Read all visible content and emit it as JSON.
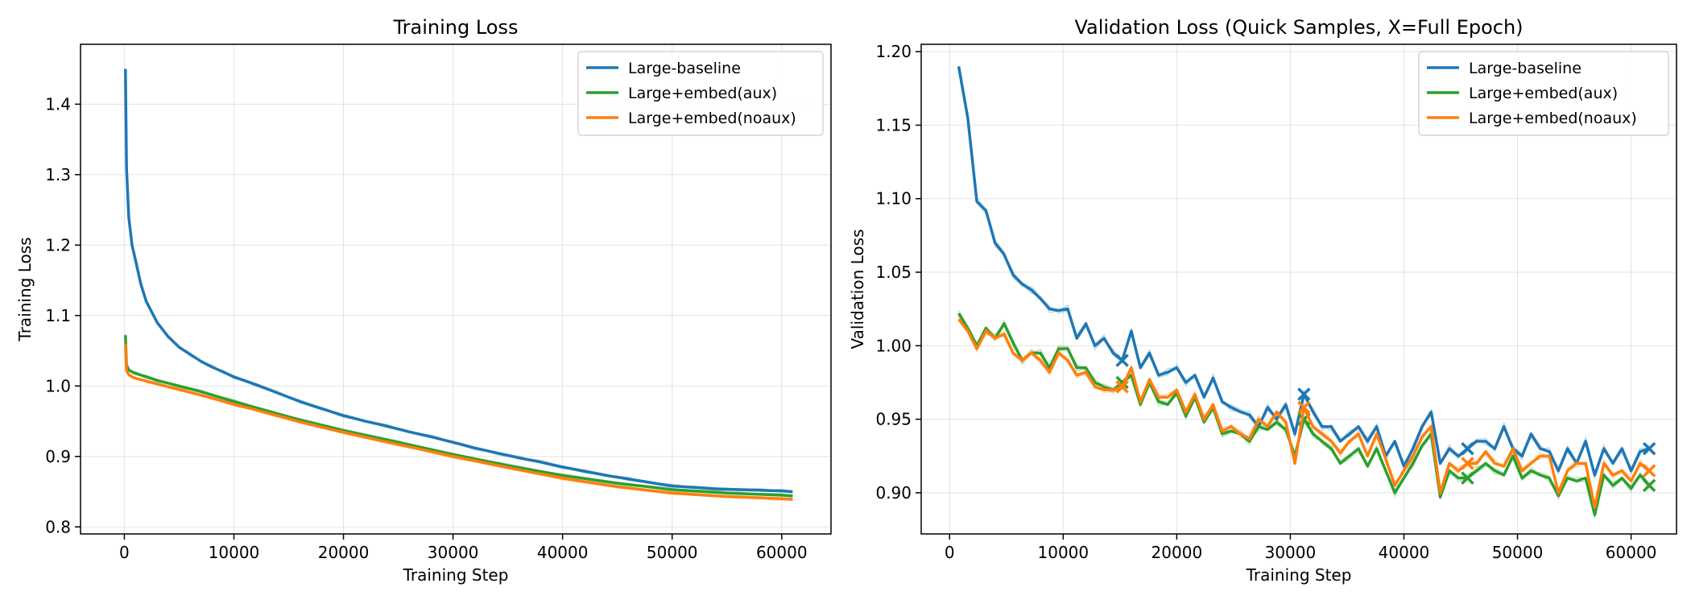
{
  "chart_data": [
    {
      "type": "line",
      "title": "Training Loss",
      "xlabel": "Training Step",
      "ylabel": "Training Loss",
      "xlim": [
        -4000,
        64500
      ],
      "ylim": [
        0.79,
        1.485
      ],
      "x_ticks": [
        0,
        10000,
        20000,
        30000,
        40000,
        50000,
        60000
      ],
      "y_ticks": [
        0.8,
        0.9,
        1.0,
        1.1,
        1.2,
        1.3,
        1.4
      ],
      "grid": true,
      "legend_position": "top-right",
      "series": [
        {
          "name": "Large-baseline",
          "color": "#1f77b4",
          "x": [
            100,
            200,
            400,
            700,
            1000,
            1500,
            2000,
            3000,
            4000,
            5000,
            6000,
            7000,
            8000,
            9000,
            10000,
            12000,
            14000,
            16000,
            18000,
            20000,
            22000,
            24000,
            26000,
            28000,
            30000,
            32000,
            34000,
            36000,
            38000,
            40000,
            42000,
            44000,
            46000,
            48000,
            50000,
            52000,
            54000,
            56000,
            58000,
            60000,
            61000
          ],
          "values": [
            1.45,
            1.31,
            1.24,
            1.2,
            1.18,
            1.145,
            1.12,
            1.09,
            1.07,
            1.055,
            1.045,
            1.035,
            1.027,
            1.02,
            1.013,
            1.002,
            0.99,
            0.978,
            0.968,
            0.958,
            0.95,
            0.943,
            0.935,
            0.928,
            0.92,
            0.912,
            0.905,
            0.898,
            0.892,
            0.885,
            0.879,
            0.873,
            0.868,
            0.863,
            0.858,
            0.856,
            0.854,
            0.853,
            0.852,
            0.851,
            0.85
          ]
        },
        {
          "name": "Large+embed(aux)",
          "color": "#2ca02c",
          "x": [
            100,
            200,
            400,
            700,
            1000,
            2000,
            3000,
            5000,
            7000,
            10000,
            13000,
            16000,
            20000,
            25000,
            30000,
            35000,
            40000,
            45000,
            50000,
            55000,
            60000,
            61000
          ],
          "values": [
            1.072,
            1.03,
            1.023,
            1.02,
            1.018,
            1.013,
            1.008,
            1.0,
            0.992,
            0.978,
            0.965,
            0.952,
            0.937,
            0.92,
            0.903,
            0.887,
            0.873,
            0.862,
            0.853,
            0.848,
            0.845,
            0.844
          ]
        },
        {
          "name": "Large+embed(noaux)",
          "color": "#ff7f0e",
          "x": [
            100,
            200,
            400,
            700,
            1000,
            2000,
            3000,
            5000,
            7000,
            10000,
            13000,
            16000,
            20000,
            25000,
            30000,
            35000,
            40000,
            45000,
            50000,
            55000,
            60000,
            61000
          ],
          "values": [
            1.06,
            1.022,
            1.016,
            1.013,
            1.011,
            1.007,
            1.003,
            0.995,
            0.987,
            0.974,
            0.962,
            0.949,
            0.934,
            0.917,
            0.9,
            0.884,
            0.869,
            0.857,
            0.848,
            0.843,
            0.84,
            0.839
          ]
        }
      ]
    },
    {
      "type": "line",
      "title": "Validation Loss (Quick Samples, X=Full Epoch)",
      "xlabel": "Training Step",
      "ylabel": "Validation Loss",
      "xlim": [
        -2500,
        64000
      ],
      "ylim": [
        0.872,
        1.205
      ],
      "x_ticks": [
        0,
        10000,
        20000,
        30000,
        40000,
        50000,
        60000
      ],
      "y_ticks": [
        0.9,
        0.95,
        1.0,
        1.05,
        1.1,
        1.15,
        1.2
      ],
      "grid": true,
      "legend_position": "top-right",
      "series": [
        {
          "name": "Large-baseline",
          "color": "#1f77b4",
          "x": [
            800,
            1600,
            2400,
            3200,
            4000,
            4800,
            5600,
            6400,
            7200,
            8000,
            8800,
            9600,
            10400,
            11200,
            12000,
            12800,
            13600,
            14400,
            15200,
            16000,
            16800,
            17600,
            18400,
            19200,
            20000,
            20800,
            21600,
            22400,
            23200,
            24000,
            24800,
            25600,
            26400,
            27200,
            28000,
            28800,
            29600,
            30400,
            31200,
            32000,
            32800,
            33600,
            34400,
            35200,
            36000,
            36800,
            37600,
            38400,
            39200,
            40000,
            40800,
            41600,
            42400,
            43200,
            44000,
            44800,
            45600,
            46400,
            47200,
            48000,
            48800,
            49600,
            50400,
            51200,
            52000,
            52800,
            53600,
            54400,
            55200,
            56000,
            56800,
            57600,
            58400,
            59200,
            60000,
            60800,
            61600
          ],
          "values": [
            1.19,
            1.155,
            1.098,
            1.092,
            1.07,
            1.062,
            1.048,
            1.042,
            1.038,
            1.032,
            1.025,
            1.024,
            1.025,
            1.005,
            1.015,
            1.0,
            1.005,
            0.995,
            0.99,
            1.01,
            0.985,
            0.995,
            0.98,
            0.982,
            0.985,
            0.975,
            0.98,
            0.965,
            0.978,
            0.962,
            0.958,
            0.955,
            0.953,
            0.945,
            0.958,
            0.95,
            0.96,
            0.94,
            0.967,
            0.955,
            0.945,
            0.945,
            0.935,
            0.94,
            0.945,
            0.935,
            0.945,
            0.925,
            0.935,
            0.918,
            0.93,
            0.945,
            0.955,
            0.92,
            0.93,
            0.925,
            0.93,
            0.935,
            0.935,
            0.93,
            0.945,
            0.93,
            0.925,
            0.94,
            0.93,
            0.928,
            0.915,
            0.93,
            0.92,
            0.935,
            0.912,
            0.93,
            0.92,
            0.93,
            0.915,
            0.928,
            0.93
          ]
        },
        {
          "name": "Large+embed(aux)",
          "color": "#2ca02c",
          "x": [
            800,
            1600,
            2400,
            3200,
            4000,
            4800,
            5600,
            6400,
            7200,
            8000,
            8800,
            9600,
            10400,
            11200,
            12000,
            12800,
            13600,
            14400,
            15200,
            16000,
            16800,
            17600,
            18400,
            19200,
            20000,
            20800,
            21600,
            22400,
            23200,
            24000,
            24800,
            25600,
            26400,
            27200,
            28000,
            28800,
            29600,
            30400,
            31200,
            32000,
            32800,
            33600,
            34400,
            35200,
            36000,
            36800,
            37600,
            38400,
            39200,
            40000,
            40800,
            41600,
            42400,
            43200,
            44000,
            44800,
            45600,
            46400,
            47200,
            48000,
            48800,
            49600,
            50400,
            51200,
            52000,
            52800,
            53600,
            54400,
            55200,
            56000,
            56800,
            57600,
            58400,
            59200,
            60000,
            60800,
            61600
          ],
          "values": [
            1.022,
            1.012,
            1.0,
            1.012,
            1.005,
            1.015,
            1.002,
            0.99,
            0.995,
            0.995,
            0.985,
            0.998,
            0.998,
            0.985,
            0.985,
            0.975,
            0.972,
            0.97,
            0.975,
            0.98,
            0.96,
            0.975,
            0.962,
            0.96,
            0.968,
            0.952,
            0.965,
            0.948,
            0.958,
            0.94,
            0.942,
            0.94,
            0.935,
            0.945,
            0.943,
            0.948,
            0.943,
            0.925,
            0.95,
            0.94,
            0.935,
            0.93,
            0.92,
            0.925,
            0.93,
            0.918,
            0.93,
            0.915,
            0.9,
            0.91,
            0.92,
            0.932,
            0.94,
            0.897,
            0.915,
            0.91,
            0.91,
            0.915,
            0.92,
            0.915,
            0.912,
            0.925,
            0.91,
            0.915,
            0.912,
            0.91,
            0.898,
            0.91,
            0.908,
            0.91,
            0.885,
            0.912,
            0.905,
            0.91,
            0.903,
            0.912,
            0.905
          ]
        },
        {
          "name": "Large+embed(noaux)",
          "color": "#ff7f0e",
          "x": [
            800,
            1600,
            2400,
            3200,
            4000,
            4800,
            5600,
            6400,
            7200,
            8000,
            8800,
            9600,
            10400,
            11200,
            12000,
            12800,
            13600,
            14400,
            15200,
            16000,
            16800,
            17600,
            18400,
            19200,
            20000,
            20800,
            21600,
            22400,
            23200,
            24000,
            24800,
            25600,
            26400,
            27200,
            28000,
            28800,
            29600,
            30400,
            31200,
            32000,
            32800,
            33600,
            34400,
            35200,
            36000,
            36800,
            37600,
            38400,
            39200,
            40000,
            40800,
            41600,
            42400,
            43200,
            44000,
            44800,
            45600,
            46400,
            47200,
            48000,
            48800,
            49600,
            50400,
            51200,
            52000,
            52800,
            53600,
            54400,
            55200,
            56000,
            56800,
            57600,
            58400,
            59200,
            60000,
            60800,
            61600
          ],
          "values": [
            1.018,
            1.01,
            0.998,
            1.01,
            1.005,
            1.008,
            0.995,
            0.99,
            0.995,
            0.99,
            0.982,
            0.995,
            0.99,
            0.98,
            0.982,
            0.972,
            0.97,
            0.97,
            0.972,
            0.985,
            0.962,
            0.977,
            0.965,
            0.965,
            0.97,
            0.955,
            0.967,
            0.95,
            0.96,
            0.942,
            0.945,
            0.94,
            0.937,
            0.95,
            0.945,
            0.955,
            0.948,
            0.92,
            0.958,
            0.945,
            0.94,
            0.935,
            0.927,
            0.935,
            0.94,
            0.925,
            0.94,
            0.923,
            0.905,
            0.915,
            0.925,
            0.938,
            0.945,
            0.9,
            0.92,
            0.915,
            0.92,
            0.92,
            0.928,
            0.92,
            0.918,
            0.93,
            0.915,
            0.92,
            0.925,
            0.925,
            0.9,
            0.915,
            0.92,
            0.92,
            0.89,
            0.92,
            0.912,
            0.915,
            0.908,
            0.92,
            0.915
          ]
        }
      ]
    }
  ]
}
